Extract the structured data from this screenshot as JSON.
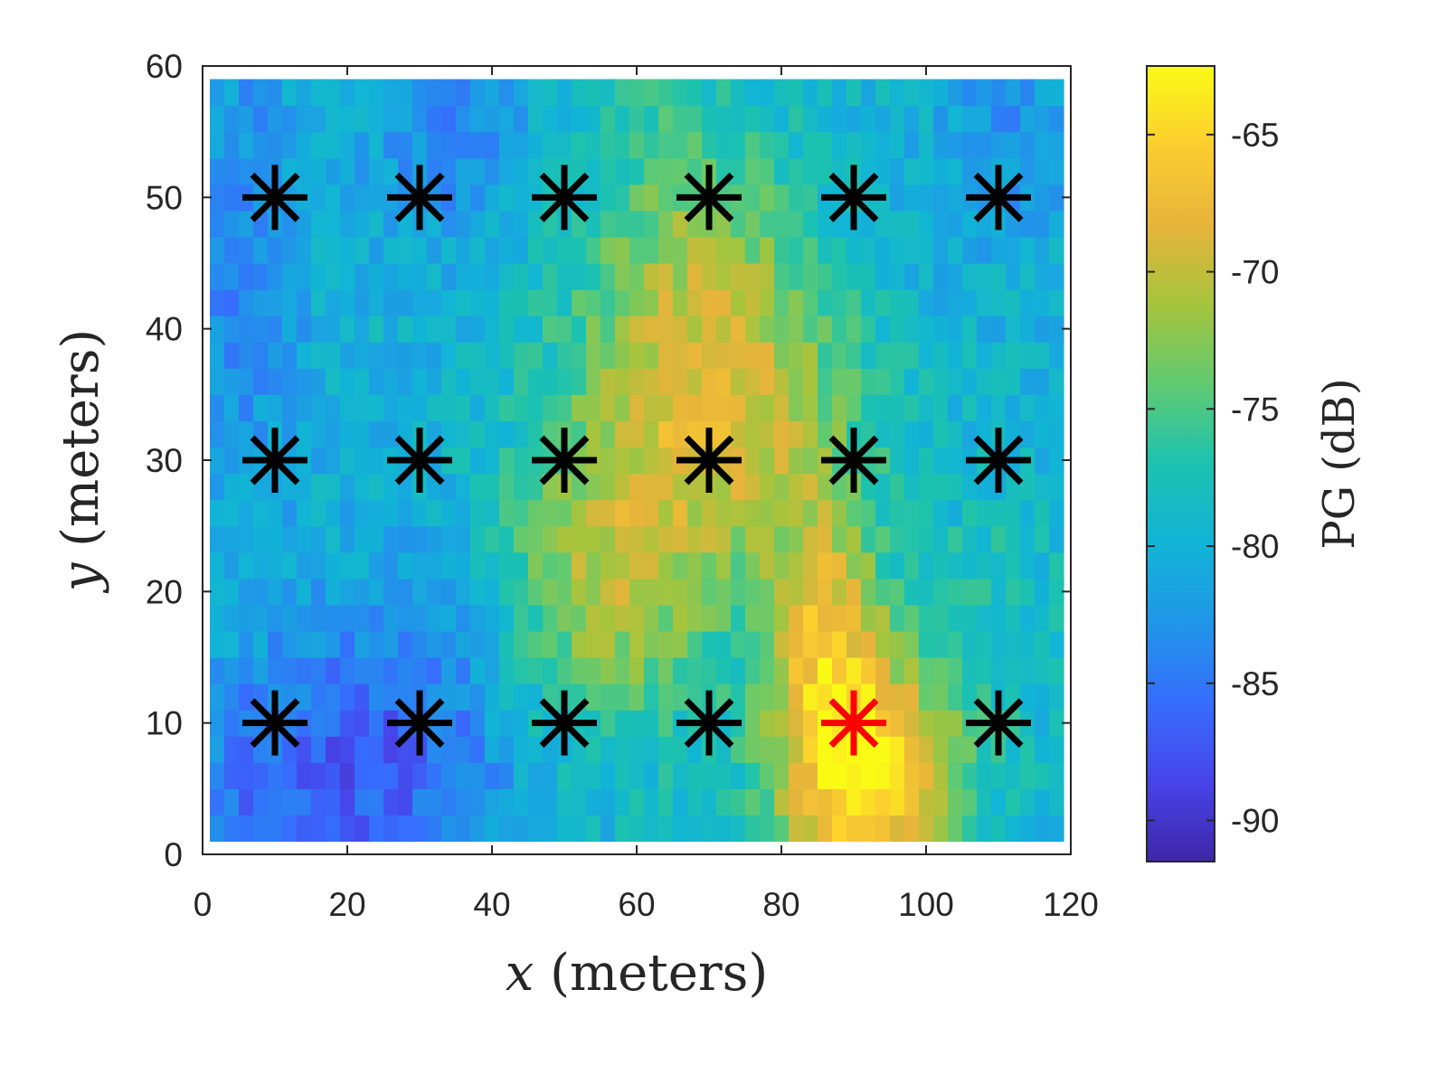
{
  "chart_data": {
    "type": "heatmap",
    "title": "",
    "xlabel_var": "x",
    "xlabel_unit": "(meters)",
    "ylabel_var": "y",
    "ylabel_unit": "(meters)",
    "xlim": [
      0,
      120
    ],
    "ylim": [
      0,
      60
    ],
    "xticks": [
      0,
      20,
      40,
      60,
      80,
      100,
      120
    ],
    "yticks": [
      0,
      10,
      20,
      30,
      40,
      50,
      60
    ],
    "colormap": "parula",
    "colorbar": {
      "label": "PG (dB)",
      "range": [
        -91.5,
        -62.5
      ],
      "ticks": [
        -65,
        -70,
        -75,
        -80,
        -85,
        -90
      ],
      "tick_labels": [
        "-65",
        "-70",
        "-75",
        "-80",
        "-85",
        "-90"
      ]
    },
    "grid_extent": {
      "x": [
        1,
        119
      ],
      "y": [
        1,
        59
      ]
    },
    "grid_step_m": 2,
    "pg_field_db": {
      "background": -80,
      "features": [
        {
          "center": [
            92,
            6
          ],
          "spread": [
            9,
            7
          ],
          "peak": 16
        },
        {
          "center": [
            86,
            17
          ],
          "spread": [
            5,
            8
          ],
          "peak": 9
        },
        {
          "center": [
            72,
            34
          ],
          "spread": [
            13,
            10
          ],
          "peak": 10
        },
        {
          "center": [
            55,
            20
          ],
          "spread": [
            10,
            9
          ],
          "peak": 8
        },
        {
          "center": [
            65,
            48
          ],
          "spread": [
            12,
            10
          ],
          "peak": 4
        },
        {
          "center": [
            15,
            5
          ],
          "spread": [
            16,
            7
          ],
          "peak": -6
        },
        {
          "center": [
            35,
            55
          ],
          "spread": [
            8,
            6
          ],
          "peak": -4
        },
        {
          "center": [
            5,
            45
          ],
          "spread": [
            6,
            12
          ],
          "peak": -4
        },
        {
          "center": [
            112,
            55
          ],
          "spread": [
            8,
            6
          ],
          "peak": -3
        },
        {
          "center": [
            30,
            12
          ],
          "spread": [
            12,
            8
          ],
          "peak": -3
        },
        {
          "center": [
            110,
            20
          ],
          "spread": [
            8,
            8
          ],
          "peak": 2
        }
      ],
      "noise_db": 2.2
    },
    "markers": {
      "symbol": "asterisk",
      "points": [
        {
          "x": 10,
          "y": 50,
          "color": "#000000"
        },
        {
          "x": 30,
          "y": 50,
          "color": "#000000"
        },
        {
          "x": 50,
          "y": 50,
          "color": "#000000"
        },
        {
          "x": 70,
          "y": 50,
          "color": "#000000"
        },
        {
          "x": 90,
          "y": 50,
          "color": "#000000"
        },
        {
          "x": 110,
          "y": 50,
          "color": "#000000"
        },
        {
          "x": 10,
          "y": 30,
          "color": "#000000"
        },
        {
          "x": 30,
          "y": 30,
          "color": "#000000"
        },
        {
          "x": 50,
          "y": 30,
          "color": "#000000"
        },
        {
          "x": 70,
          "y": 30,
          "color": "#000000"
        },
        {
          "x": 90,
          "y": 30,
          "color": "#000000"
        },
        {
          "x": 110,
          "y": 30,
          "color": "#000000"
        },
        {
          "x": 10,
          "y": 10,
          "color": "#000000"
        },
        {
          "x": 30,
          "y": 10,
          "color": "#000000"
        },
        {
          "x": 50,
          "y": 10,
          "color": "#000000"
        },
        {
          "x": 70,
          "y": 10,
          "color": "#000000"
        },
        {
          "x": 90,
          "y": 10,
          "color": "#ff0000"
        },
        {
          "x": 110,
          "y": 10,
          "color": "#000000"
        }
      ]
    }
  }
}
